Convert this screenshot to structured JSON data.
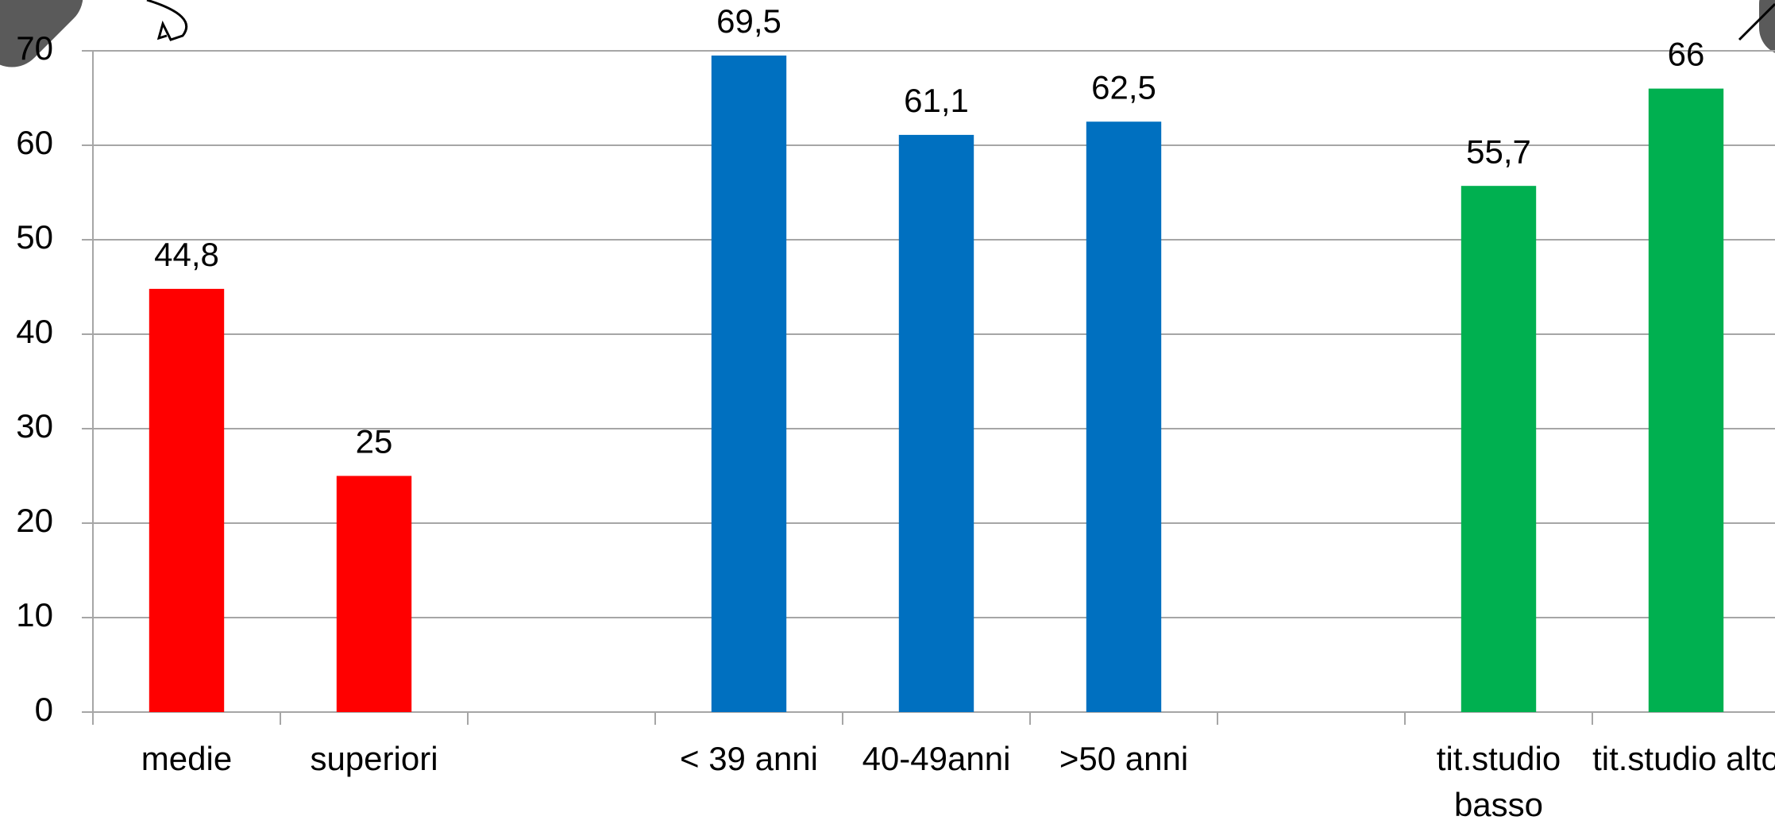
{
  "chart_data": {
    "type": "bar",
    "categories": [
      "medie",
      "superiori",
      null,
      "< 39 anni",
      "40-49anni",
      ">50 anni",
      null,
      "tit.studio basso",
      "tit.studio alto"
    ],
    "values": [
      44.8,
      25,
      null,
      69.5,
      61.1,
      62.5,
      null,
      55.7,
      66
    ],
    "value_labels": [
      "44,8",
      "25",
      null,
      "69,5",
      "61,1",
      "62,5",
      null,
      "55,7",
      "66"
    ],
    "colors": [
      "#ff0000",
      "#ff0000",
      null,
      "#0070c0",
      "#0070c0",
      "#0070c0",
      null,
      "#00b050",
      "#00b050"
    ],
    "ylim": [
      0,
      70
    ],
    "yticks": [
      0,
      10,
      20,
      30,
      40,
      50,
      60,
      70
    ],
    "grid": true
  }
}
